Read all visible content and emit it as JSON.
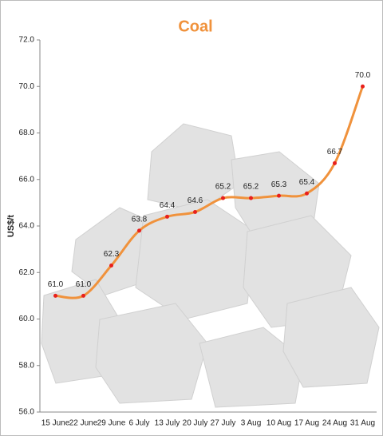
{
  "chart_data": {
    "type": "line",
    "title": "Coal",
    "title_color": "#f0923c",
    "y_label": "US$/t",
    "categories": [
      "15 June",
      "22 June",
      "29 June",
      "6 July",
      "13 July",
      "20 July",
      "27 July",
      "3 Aug",
      "10 Aug",
      "17 Aug",
      "24 Aug",
      "31 Aug"
    ],
    "series": [
      {
        "name": "Coal",
        "color": "#f0923c",
        "marker_color": "#e8201c",
        "values": [
          61.0,
          61.0,
          62.3,
          63.8,
          64.4,
          64.6,
          65.2,
          65.2,
          65.3,
          65.4,
          66.7,
          70.0
        ],
        "value_labels": [
          "61.0",
          "61.0",
          "62.3",
          "63.8",
          "64.4",
          "64.6",
          "65.2",
          "65.2",
          "65.3",
          "65.4",
          "66.7",
          "70.0"
        ]
      }
    ],
    "ylim": [
      56,
      72
    ],
    "yticks": [
      {
        "value": 56,
        "label": "56.0"
      },
      {
        "value": 58,
        "label": "58.0"
      },
      {
        "value": 60,
        "label": "60.0"
      },
      {
        "value": 62,
        "label": "62.0"
      },
      {
        "value": 64,
        "label": "64.0"
      },
      {
        "value": 66,
        "label": "66.0"
      },
      {
        "value": 68,
        "label": "68.0"
      },
      {
        "value": 70,
        "label": "70.0"
      },
      {
        "value": 72,
        "label": "72.0"
      }
    ],
    "grid": false,
    "smooth": true
  }
}
